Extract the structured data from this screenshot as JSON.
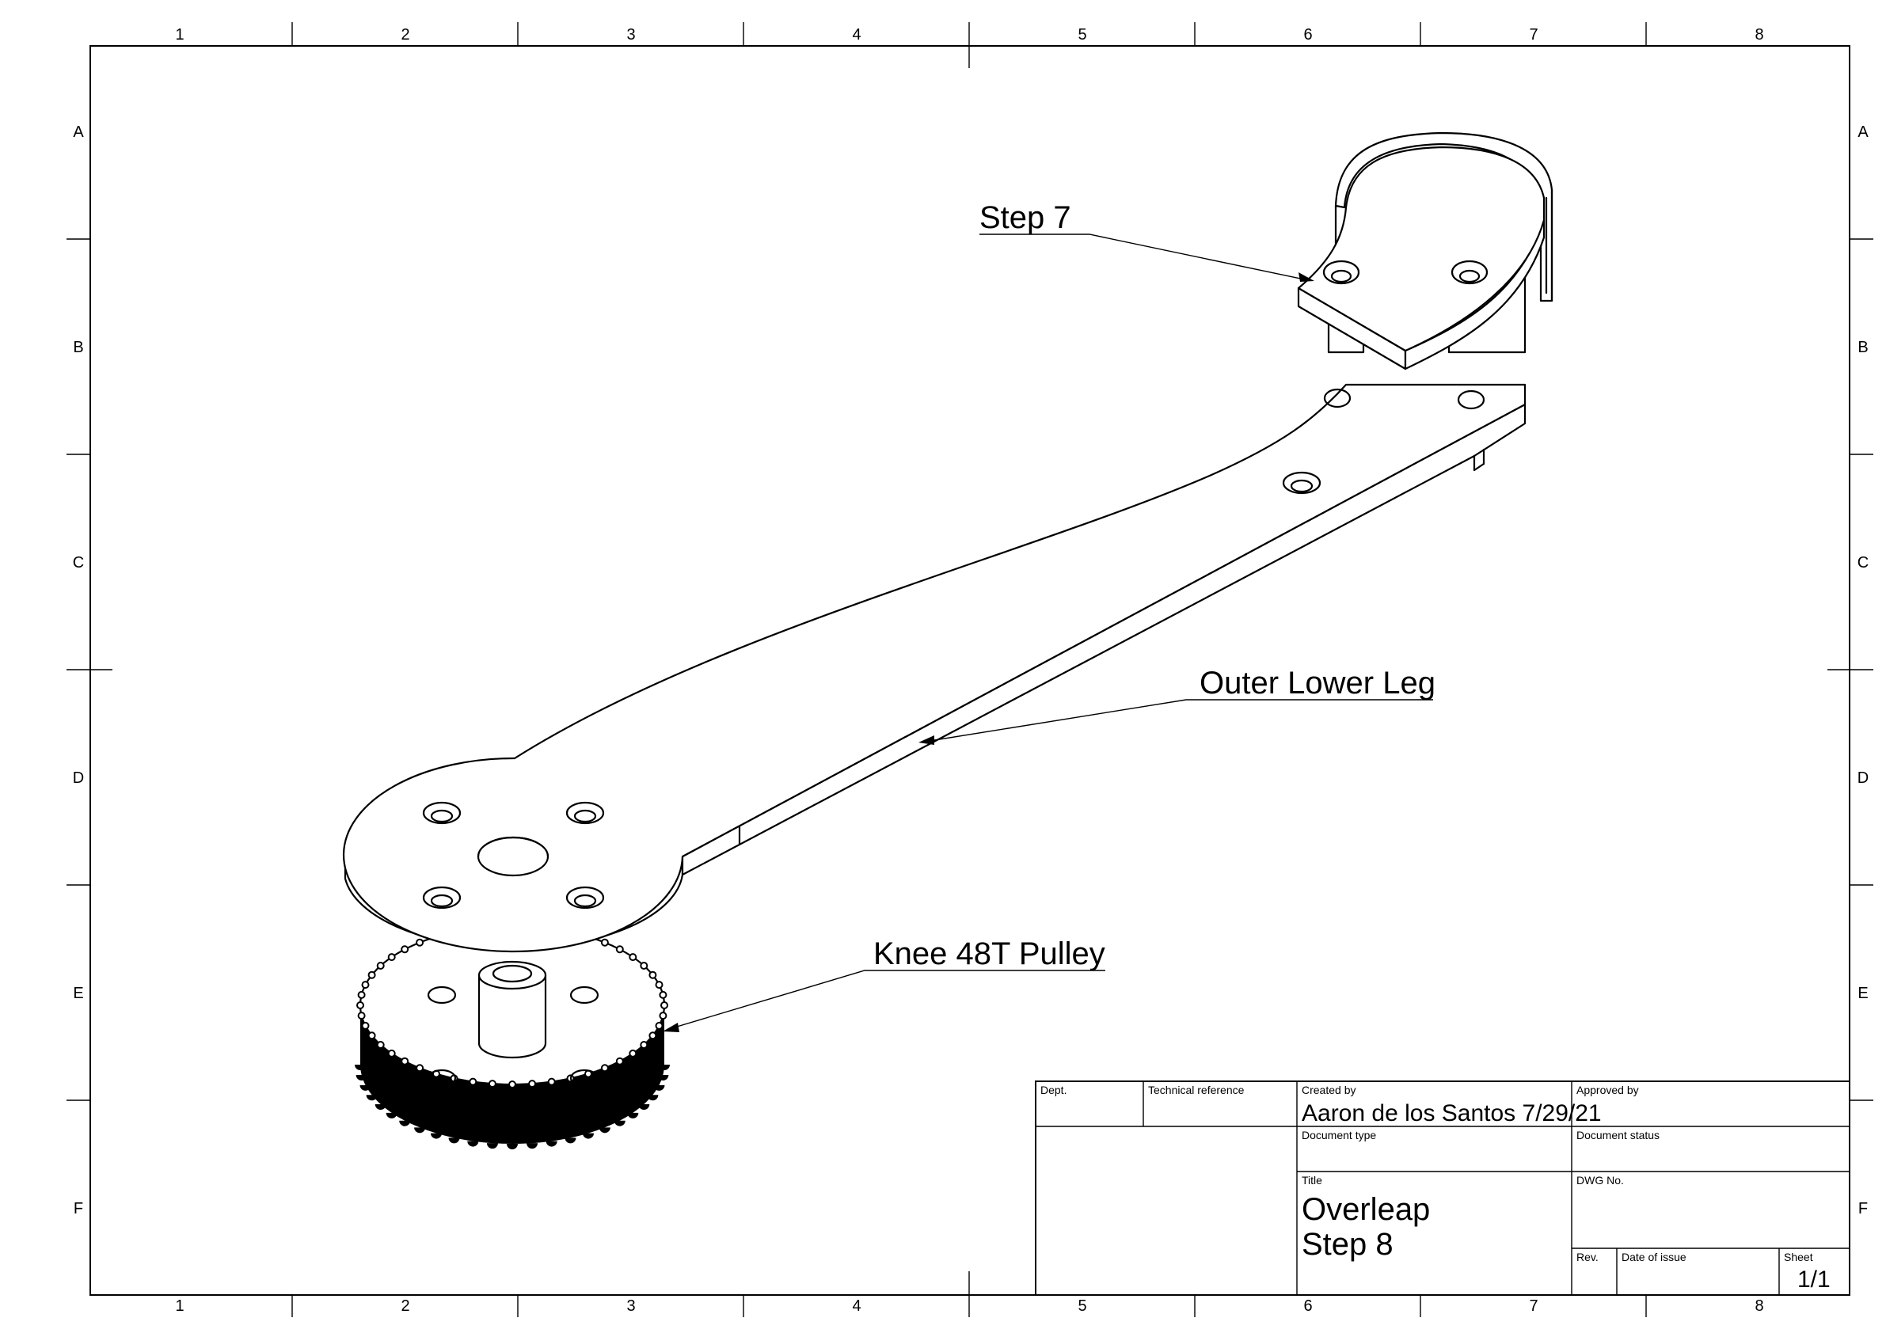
{
  "drawing_frame": {
    "columns": [
      "1",
      "2",
      "3",
      "4",
      "5",
      "6",
      "7",
      "8"
    ],
    "rows": [
      "A",
      "B",
      "C",
      "D",
      "E",
      "F"
    ]
  },
  "callouts": {
    "step7": "Step 7",
    "outer_lower_leg": "Outer Lower Leg",
    "knee_pulley": "Knee 48T Pulley"
  },
  "title_block": {
    "dept_label": "Dept.",
    "technical_reference_label": "Technical reference",
    "created_by_label": "Created by",
    "created_by_value": "Aaron de los Santos 7/29/21",
    "approved_by_label": "Approved by",
    "document_type_label": "Document type",
    "document_status_label": "Document status",
    "title_label": "Title",
    "title_line1": "Overleap",
    "title_line2": "Step 8",
    "dwg_no_label": "DWG No.",
    "rev_label": "Rev.",
    "date_of_issue_label": "Date of issue",
    "sheet_label": "Sheet",
    "sheet_value": "1/1"
  }
}
